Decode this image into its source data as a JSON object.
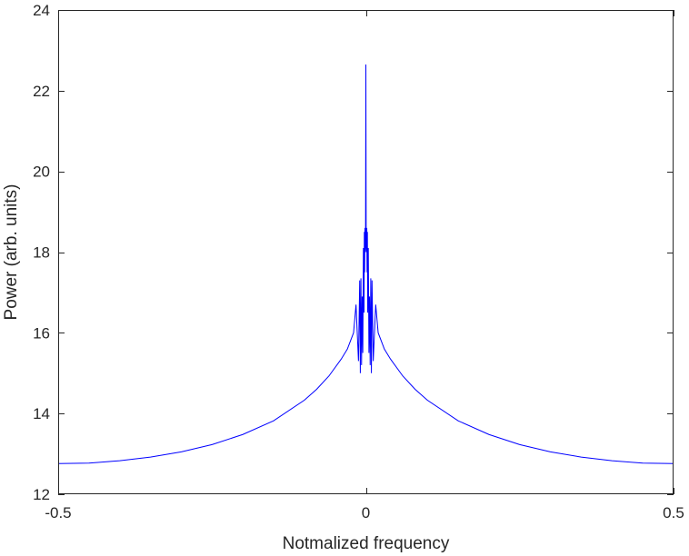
{
  "chart_data": {
    "type": "line",
    "title": "",
    "xlabel": "Notmalized frequency",
    "ylabel": "Power (arb. units)",
    "xlim": [
      -0.5,
      0.5
    ],
    "ylim": [
      12,
      24
    ],
    "xticks": [
      -0.5,
      0,
      0.5
    ],
    "xtick_labels": [
      "-0.5",
      "0",
      "0.5"
    ],
    "yticks": [
      12,
      14,
      16,
      18,
      20,
      22,
      24
    ],
    "ytick_labels": [
      "12",
      "14",
      "16",
      "18",
      "20",
      "22",
      "24"
    ],
    "grid": false,
    "box": true,
    "series": [
      {
        "color": "#0000ff",
        "x": [
          -0.5,
          -0.45,
          -0.4,
          -0.35,
          -0.3,
          -0.25,
          -0.2,
          -0.15,
          -0.1,
          -0.08,
          -0.06,
          -0.04,
          -0.03,
          -0.02,
          -0.016,
          -0.012,
          -0.01,
          -0.009,
          -0.008,
          -0.007,
          -0.006,
          -0.005,
          -0.004,
          -0.003,
          -0.0025,
          -0.002,
          -0.0015,
          -0.001,
          -0.0005,
          0,
          0.0005,
          0.001,
          0.0015,
          0.002,
          0.0025,
          0.003,
          0.004,
          0.005,
          0.006,
          0.007,
          0.008,
          0.009,
          0.01,
          0.012,
          0.016,
          0.02,
          0.03,
          0.04,
          0.06,
          0.08,
          0.1,
          0.15,
          0.2,
          0.25,
          0.3,
          0.35,
          0.4,
          0.45,
          0.5
        ],
        "y": [
          12.76,
          12.77,
          12.83,
          12.92,
          13.05,
          13.23,
          13.48,
          13.82,
          14.33,
          14.6,
          14.93,
          15.35,
          15.6,
          16.0,
          16.7,
          15.3,
          17.3,
          15.0,
          17.35,
          15.2,
          16.9,
          15.5,
          18.1,
          16.5,
          18.5,
          17.5,
          18.6,
          18.0,
          18.2,
          22.65,
          18.2,
          18.0,
          18.6,
          17.5,
          18.5,
          16.5,
          18.1,
          15.5,
          16.9,
          15.2,
          17.35,
          15.0,
          17.3,
          15.3,
          16.7,
          16.0,
          15.6,
          15.35,
          14.93,
          14.6,
          14.33,
          13.82,
          13.48,
          13.23,
          13.05,
          12.92,
          12.83,
          12.77,
          12.76
        ]
      }
    ]
  }
}
